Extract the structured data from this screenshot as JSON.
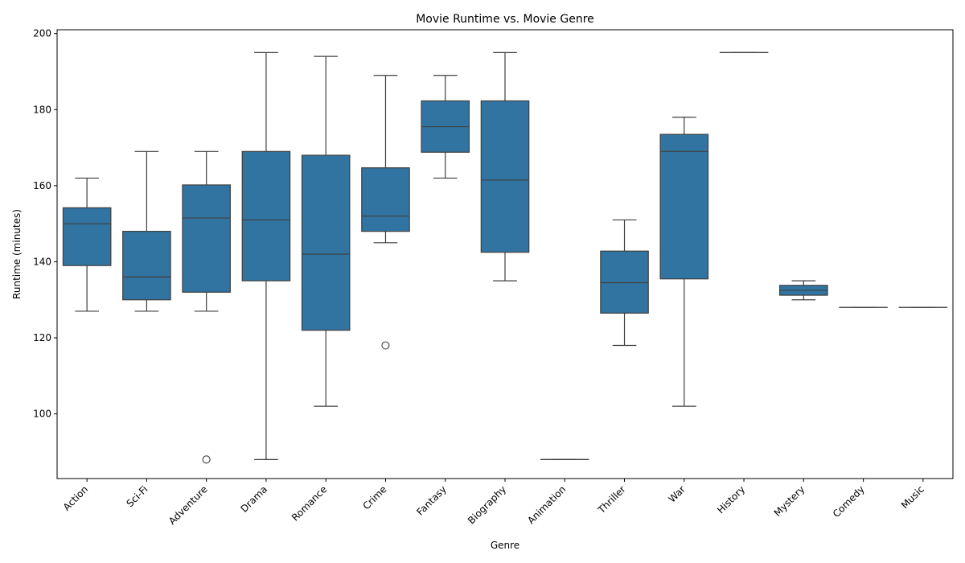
{
  "chart_data": {
    "type": "box",
    "title": "Movie Runtime vs. Movie Genre",
    "xlabel": "Genre",
    "ylabel": "Runtime (minutes)",
    "ylim": [
      83,
      201
    ],
    "yticks": [
      100,
      120,
      140,
      160,
      180,
      200
    ],
    "grid": false,
    "box_color": "#3274a1",
    "line_color": "#3f3f3f",
    "categories": [
      "Action",
      "Sci-Fi",
      "Adventure",
      "Drama",
      "Romance",
      "Crime",
      "Fantasy",
      "Biography",
      "Animation",
      "Thriller",
      "War",
      "History",
      "Mystery",
      "Comedy",
      "Music"
    ],
    "boxes": [
      {
        "category": "Action",
        "whisker_low": 127,
        "q1": 139,
        "median": 150,
        "q3": 154.2,
        "whisker_high": 162,
        "outliers": []
      },
      {
        "category": "Sci-Fi",
        "whisker_low": 127,
        "q1": 130,
        "median": 136,
        "q3": 148,
        "whisker_high": 169,
        "outliers": []
      },
      {
        "category": "Adventure",
        "whisker_low": 127,
        "q1": 132,
        "median": 151.5,
        "q3": 160.2,
        "whisker_high": 169,
        "outliers": [
          88
        ]
      },
      {
        "category": "Drama",
        "whisker_low": 88,
        "q1": 135,
        "median": 151,
        "q3": 169,
        "whisker_high": 195,
        "outliers": []
      },
      {
        "category": "Romance",
        "whisker_low": 102,
        "q1": 122,
        "median": 142,
        "q3": 168,
        "whisker_high": 194,
        "outliers": []
      },
      {
        "category": "Crime",
        "whisker_low": 145,
        "q1": 148,
        "median": 152,
        "q3": 164.7,
        "whisker_high": 189,
        "outliers": [
          118
        ]
      },
      {
        "category": "Fantasy",
        "whisker_low": 162,
        "q1": 168.8,
        "median": 175.5,
        "q3": 182.3,
        "whisker_high": 189,
        "outliers": []
      },
      {
        "category": "Biography",
        "whisker_low": 135,
        "q1": 142.5,
        "median": 161.5,
        "q3": 182.3,
        "whisker_high": 195,
        "outliers": []
      },
      {
        "category": "Animation",
        "whisker_low": 88,
        "q1": 88,
        "median": 88,
        "q3": 88,
        "whisker_high": 88,
        "outliers": []
      },
      {
        "category": "Thriller",
        "whisker_low": 118,
        "q1": 126.5,
        "median": 134.5,
        "q3": 142.8,
        "whisker_high": 151,
        "outliers": []
      },
      {
        "category": "War",
        "whisker_low": 102,
        "q1": 135.5,
        "median": 169,
        "q3": 173.5,
        "whisker_high": 178,
        "outliers": []
      },
      {
        "category": "History",
        "whisker_low": 195,
        "q1": 195,
        "median": 195,
        "q3": 195,
        "whisker_high": 195,
        "outliers": []
      },
      {
        "category": "Mystery",
        "whisker_low": 130,
        "q1": 131.2,
        "median": 132.5,
        "q3": 133.8,
        "whisker_high": 135,
        "outliers": []
      },
      {
        "category": "Comedy",
        "whisker_low": 128,
        "q1": 128,
        "median": 128,
        "q3": 128,
        "whisker_high": 128,
        "outliers": []
      },
      {
        "category": "Music",
        "whisker_low": 128,
        "q1": 128,
        "median": 128,
        "q3": 128,
        "whisker_high": 128,
        "outliers": []
      }
    ]
  }
}
